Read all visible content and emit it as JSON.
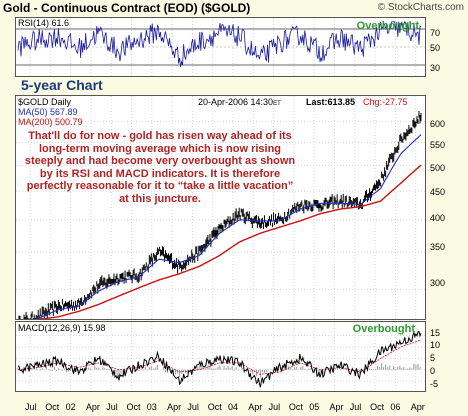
{
  "header": {
    "title": "Gold - Continuous Contract (EOD) ($GOLD)",
    "credit": "© StockCharts.com"
  },
  "rsi": {
    "label": "RSI(14) 61.6",
    "overbought": "Overbought",
    "ticks": [
      "70",
      "50",
      "30"
    ]
  },
  "chart_label": "5-year Chart",
  "price": {
    "symbol": "$GOLD Daily",
    "date": "20-Apr-2006 14:30",
    "date_suffix": "ET",
    "last": "Last:613.85",
    "change": "Chg:-27.75",
    "ma50": "MA(50) 567.89",
    "ma200": "MA(200) 500.79",
    "annotation": "That'll do for now - gold has risen way ahead of its long-term moving average which is now rising steeply and had become very overbought as shown by its RSI and MACD indicators. It is therefore perfectly reasonable for it to “take a little vacation” at this juncture.",
    "ticks": [
      "600",
      "550",
      "500",
      "450",
      "400",
      "350",
      "300"
    ]
  },
  "macd": {
    "label": "MACD(12,26,9)  15.98",
    "overbought": "Overbought",
    "ticks": [
      "15",
      "10",
      "5",
      "0",
      "-5"
    ]
  },
  "x_axis": [
    "Jul",
    "Oct",
    "02",
    "Apr",
    "Jul",
    "Oct",
    "03",
    "Apr",
    "Jul",
    "Oct",
    "04",
    "Apr",
    "Jul",
    "Oct",
    "05",
    "Apr",
    "Jul",
    "Oct",
    "06",
    "Apr"
  ],
  "colors": {
    "price_bars": "#000000",
    "ma50": "#1f2fbf",
    "ma200": "#cc1111",
    "rsi_line": "#1a1aa0",
    "annotation": "#b22222",
    "overbought": "#2e9b2e",
    "title_label": "#1a3a7a"
  },
  "chart_data": [
    {
      "type": "line",
      "title": "Gold - Continuous Contract (EOD) ($GOLD)",
      "panel": "price",
      "yscale": "log",
      "ylim": [
        270,
        650
      ],
      "x": [
        "2001-04",
        "2001-07",
        "2001-10",
        "2002-01",
        "2002-04",
        "2002-07",
        "2002-10",
        "2003-01",
        "2003-04",
        "2003-07",
        "2003-10",
        "2004-01",
        "2004-04",
        "2004-07",
        "2004-10",
        "2005-01",
        "2005-04",
        "2005-07",
        "2005-10",
        "2006-01",
        "2006-04"
      ],
      "series": [
        {
          "name": "$GOLD Daily",
          "values": [
            262,
            268,
            280,
            282,
            305,
            315,
            318,
            350,
            330,
            350,
            385,
            410,
            395,
            400,
            425,
            425,
            432,
            425,
            470,
            555,
            614
          ]
        },
        {
          "name": "MA(50)",
          "values": [
            262,
            266,
            276,
            280,
            298,
            310,
            316,
            340,
            335,
            345,
            378,
            400,
            398,
            398,
            418,
            428,
            428,
            426,
            455,
            525,
            568
          ]
        },
        {
          "name": "MA(200)",
          "values": [
            264,
            265,
            268,
            274,
            282,
            292,
            302,
            312,
            320,
            330,
            345,
            365,
            378,
            388,
            398,
            410,
            418,
            422,
            432,
            465,
            501
          ]
        }
      ]
    },
    {
      "type": "line",
      "title": "RSI(14) 61.6",
      "panel": "rsi",
      "ylim": [
        20,
        80
      ],
      "x": [
        "2001-04",
        "2001-07",
        "2001-10",
        "2002-01",
        "2002-04",
        "2002-07",
        "2002-10",
        "2003-01",
        "2003-04",
        "2003-07",
        "2003-10",
        "2004-01",
        "2004-04",
        "2004-07",
        "2004-10",
        "2005-01",
        "2005-04",
        "2005-07",
        "2005-10",
        "2006-01",
        "2006-04"
      ],
      "series": [
        {
          "name": "RSI(14)",
          "values": [
            50,
            58,
            62,
            48,
            66,
            45,
            58,
            68,
            38,
            56,
            66,
            62,
            36,
            55,
            64,
            44,
            60,
            48,
            68,
            72,
            62
          ]
        }
      ]
    },
    {
      "type": "line",
      "title": "MACD(12,26,9)  15.98",
      "panel": "macd",
      "ylim": [
        -8,
        17
      ],
      "x": [
        "2001-04",
        "2001-07",
        "2001-10",
        "2002-01",
        "2002-04",
        "2002-07",
        "2002-10",
        "2003-01",
        "2003-04",
        "2003-07",
        "2003-10",
        "2004-01",
        "2004-04",
        "2004-07",
        "2004-10",
        "2005-01",
        "2005-04",
        "2005-07",
        "2005-10",
        "2006-01",
        "2006-04"
      ],
      "series": [
        {
          "name": "MACD",
          "values": [
            0,
            2,
            4,
            -1,
            5,
            -3,
            2,
            6,
            -5,
            2,
            5,
            3,
            -6,
            1,
            5,
            -2,
            2,
            -2,
            8,
            12,
            16
          ]
        },
        {
          "name": "Signal",
          "values": [
            0,
            1,
            3,
            1,
            3,
            0,
            1,
            4,
            -1,
            0,
            3,
            3,
            -2,
            -1,
            3,
            0,
            1,
            -1,
            5,
            10,
            13
          ]
        }
      ]
    }
  ]
}
